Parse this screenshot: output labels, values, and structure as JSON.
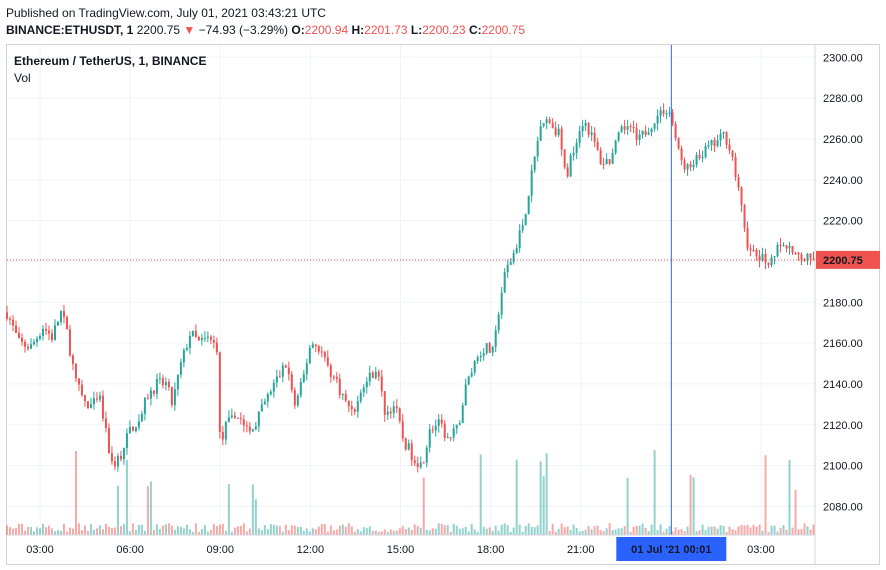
{
  "header": {
    "published": "Published on TradingView.com, July 01, 2021 03:43:21 UTC",
    "symbol": "BINANCE:ETHUSDT, 1",
    "last": "2200.75",
    "arrow": "▼",
    "change": "−74.93 (−3.29%)",
    "o_label": "O:",
    "o_value": "2200.94",
    "h_label": "H:",
    "h_value": "2201.73",
    "l_label": "L:",
    "l_value": "2200.23",
    "c_label": "C:",
    "c_value": "2200.75"
  },
  "legend": {
    "title": "Ethereum / TetherUS, 1, BINANCE",
    "volume": "Vol"
  },
  "colors": {
    "up": "#26a69a",
    "down": "#ef5350",
    "crosshair": "#2962ff",
    "price_line": "#ef5350",
    "grid": "#f0f3fa",
    "badge_time": "#2962ff"
  },
  "chart_data": {
    "type": "candlestick",
    "symbol": "ETHUSDT",
    "interval": "1",
    "last_price": 2200.75,
    "last_price_label": "2200.75",
    "crosshair_time_label": "01 Jul '21   00:01",
    "ylim": [
      2066,
      2306
    ],
    "y_ticks": [
      2080,
      2100,
      2120,
      2140,
      2160,
      2180,
      2200,
      2220,
      2240,
      2260,
      2280,
      2300
    ],
    "y_tick_labels": [
      "2080.00",
      "2100.00",
      "2120.00",
      "2140.00",
      "2160.00",
      "2180.00",
      "2200.00",
      "2220.00",
      "2240.00",
      "2260.00",
      "2280.00",
      "2300.00"
    ],
    "x_tick_labels": [
      "03:00",
      "06:00",
      "09:00",
      "12:00",
      "15:00",
      "18:00",
      "21:00",
      "03:00"
    ],
    "x_tick_hours": [
      3,
      6,
      9,
      12,
      15,
      18,
      21,
      27
    ],
    "x_range_hours": [
      1.9,
      28.8
    ],
    "crosshair_hour": 24.0167,
    "price_path": [
      [
        1.9,
        2175
      ],
      [
        2.3,
        2160
      ],
      [
        2.7,
        2158
      ],
      [
        3.1,
        2168
      ],
      [
        3.4,
        2163
      ],
      [
        3.7,
        2175
      ],
      [
        3.9,
        2165
      ],
      [
        4.2,
        2140
      ],
      [
        4.6,
        2128
      ],
      [
        5.0,
        2132
      ],
      [
        5.2,
        2115
      ],
      [
        5.4,
        2100
      ],
      [
        5.7,
        2105
      ],
      [
        6.0,
        2118
      ],
      [
        6.3,
        2122
      ],
      [
        6.6,
        2135
      ],
      [
        6.9,
        2140
      ],
      [
        7.2,
        2140
      ],
      [
        7.4,
        2130
      ],
      [
        7.7,
        2150
      ],
      [
        8.0,
        2165
      ],
      [
        8.3,
        2160
      ],
      [
        8.6,
        2162
      ],
      [
        8.9,
        2158
      ],
      [
        9.0,
        2108
      ],
      [
        9.2,
        2120
      ],
      [
        9.6,
        2125
      ],
      [
        10.0,
        2115
      ],
      [
        10.4,
        2128
      ],
      [
        10.8,
        2140
      ],
      [
        11.2,
        2150
      ],
      [
        11.5,
        2128
      ],
      [
        11.8,
        2145
      ],
      [
        12.0,
        2160
      ],
      [
        12.3,
        2158
      ],
      [
        12.6,
        2148
      ],
      [
        12.9,
        2140
      ],
      [
        13.2,
        2130
      ],
      [
        13.5,
        2128
      ],
      [
        13.8,
        2140
      ],
      [
        14.2,
        2148
      ],
      [
        14.5,
        2125
      ],
      [
        14.8,
        2130
      ],
      [
        15.1,
        2112
      ],
      [
        15.4,
        2105
      ],
      [
        15.7,
        2100
      ],
      [
        16.0,
        2118
      ],
      [
        16.3,
        2120
      ],
      [
        16.6,
        2112
      ],
      [
        16.9,
        2118
      ],
      [
        17.2,
        2140
      ],
      [
        17.5,
        2152
      ],
      [
        17.8,
        2158
      ],
      [
        18.1,
        2155
      ],
      [
        18.3,
        2180
      ],
      [
        18.5,
        2195
      ],
      [
        18.8,
        2205
      ],
      [
        19.1,
        2220
      ],
      [
        19.4,
        2245
      ],
      [
        19.7,
        2270
      ],
      [
        20.0,
        2268
      ],
      [
        20.3,
        2262
      ],
      [
        20.5,
        2240
      ],
      [
        20.8,
        2258
      ],
      [
        21.1,
        2270
      ],
      [
        21.4,
        2260
      ],
      [
        21.7,
        2248
      ],
      [
        22.0,
        2250
      ],
      [
        22.3,
        2262
      ],
      [
        22.6,
        2268
      ],
      [
        22.9,
        2258
      ],
      [
        23.2,
        2265
      ],
      [
        23.5,
        2270
      ],
      [
        23.8,
        2275
      ],
      [
        24.0,
        2272
      ],
      [
        24.3,
        2250
      ],
      [
        24.6,
        2245
      ],
      [
        24.9,
        2250
      ],
      [
        25.2,
        2255
      ],
      [
        25.5,
        2258
      ],
      [
        25.8,
        2262
      ],
      [
        26.0,
        2255
      ],
      [
        26.3,
        2230
      ],
      [
        26.6,
        2205
      ],
      [
        26.9,
        2202
      ],
      [
        27.2,
        2200
      ],
      [
        27.5,
        2205
      ],
      [
        27.8,
        2208
      ],
      [
        28.1,
        2202
      ],
      [
        28.4,
        2201
      ],
      [
        28.75,
        2200.75
      ]
    ]
  }
}
